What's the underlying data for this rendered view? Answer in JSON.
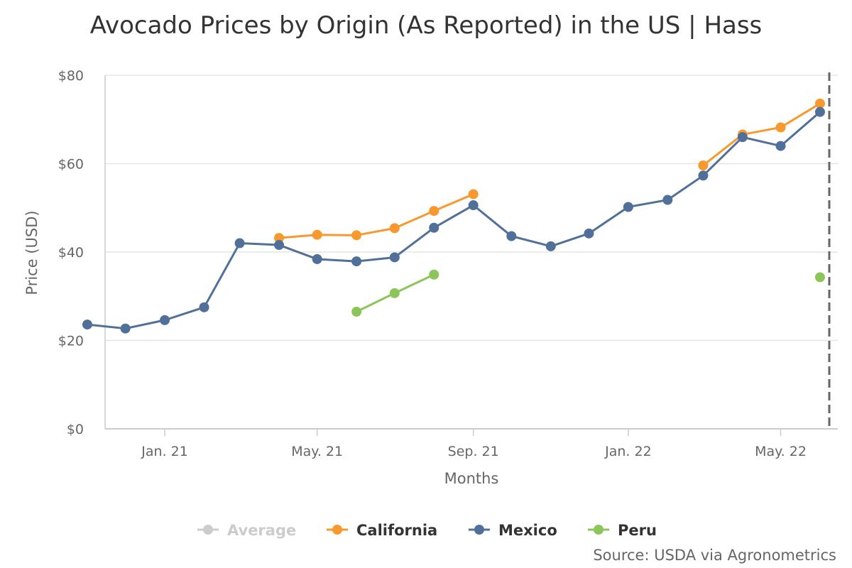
{
  "chart_data": {
    "type": "line",
    "title": "Avocado Prices by Origin (As Reported) in the US | Hass",
    "xlabel": "Months",
    "ylabel": "Price (USD)",
    "ylim": [
      0,
      80
    ],
    "y_ticks": [
      0,
      20,
      40,
      60,
      80
    ],
    "y_tick_labels": [
      "$0",
      "$20",
      "$40",
      "$60",
      "$80"
    ],
    "x_start": "2020-11-15",
    "x_end": "2022-06-15",
    "x_ticks": [
      {
        "date": "2021-01-01",
        "label": "Jan. 21"
      },
      {
        "date": "2021-05-01",
        "label": "May. 21"
      },
      {
        "date": "2021-09-01",
        "label": "Sep. 21"
      },
      {
        "date": "2022-01-01",
        "label": "Jan. 22"
      },
      {
        "date": "2022-05-01",
        "label": "May. 22"
      }
    ],
    "marker_line_date": "2022-06-15",
    "grid": true,
    "legend_position": "bottom",
    "series": [
      {
        "name": "Average",
        "color": "#cccccc",
        "visible": false,
        "points": []
      },
      {
        "name": "California",
        "color": "#f7992e",
        "visible": true,
        "points": [
          {
            "x": "2021-04-01",
            "y": 43.2
          },
          {
            "x": "2021-05-01",
            "y": 43.9
          },
          {
            "x": "2021-06-01",
            "y": 43.8
          },
          {
            "x": "2021-07-01",
            "y": 45.4
          },
          {
            "x": "2021-08-01",
            "y": 49.3
          },
          {
            "x": "2021-09-01",
            "y": 53.1
          },
          {
            "x": null,
            "y": null
          },
          {
            "x": "2022-03-01",
            "y": 59.6
          },
          {
            "x": "2022-04-01",
            "y": 66.6
          },
          {
            "x": "2022-05-01",
            "y": 68.2
          },
          {
            "x": "2022-06-01",
            "y": 73.6
          }
        ]
      },
      {
        "name": "Mexico",
        "color": "#50709a",
        "visible": true,
        "points": [
          {
            "x": "2020-11-01",
            "y": 23.6
          },
          {
            "x": "2020-12-01",
            "y": 22.7
          },
          {
            "x": "2021-01-01",
            "y": 24.6
          },
          {
            "x": "2021-02-01",
            "y": 27.5
          },
          {
            "x": "2021-03-01",
            "y": 42.0
          },
          {
            "x": "2021-04-01",
            "y": 41.6
          },
          {
            "x": "2021-05-01",
            "y": 38.4
          },
          {
            "x": "2021-06-01",
            "y": 37.9
          },
          {
            "x": "2021-07-01",
            "y": 38.8
          },
          {
            "x": "2021-08-01",
            "y": 45.5
          },
          {
            "x": "2021-09-01",
            "y": 50.6
          },
          {
            "x": "2021-10-01",
            "y": 43.6
          },
          {
            "x": "2021-11-01",
            "y": 41.3
          },
          {
            "x": "2021-12-01",
            "y": 44.2
          },
          {
            "x": "2022-01-01",
            "y": 50.2
          },
          {
            "x": "2022-02-01",
            "y": 51.8
          },
          {
            "x": "2022-03-01",
            "y": 57.3
          },
          {
            "x": "2022-04-01",
            "y": 66.0
          },
          {
            "x": "2022-05-01",
            "y": 64.0
          },
          {
            "x": "2022-06-01",
            "y": 71.7
          }
        ]
      },
      {
        "name": "Peru",
        "color": "#8cc65b",
        "visible": true,
        "points": [
          {
            "x": "2021-06-01",
            "y": 26.5
          },
          {
            "x": "2021-07-01",
            "y": 30.7
          },
          {
            "x": "2021-08-01",
            "y": 34.9
          },
          {
            "x": null,
            "y": null
          },
          {
            "x": "2022-06-01",
            "y": 34.3
          }
        ]
      }
    ]
  },
  "source": "Source: USDA via Agronometrics"
}
